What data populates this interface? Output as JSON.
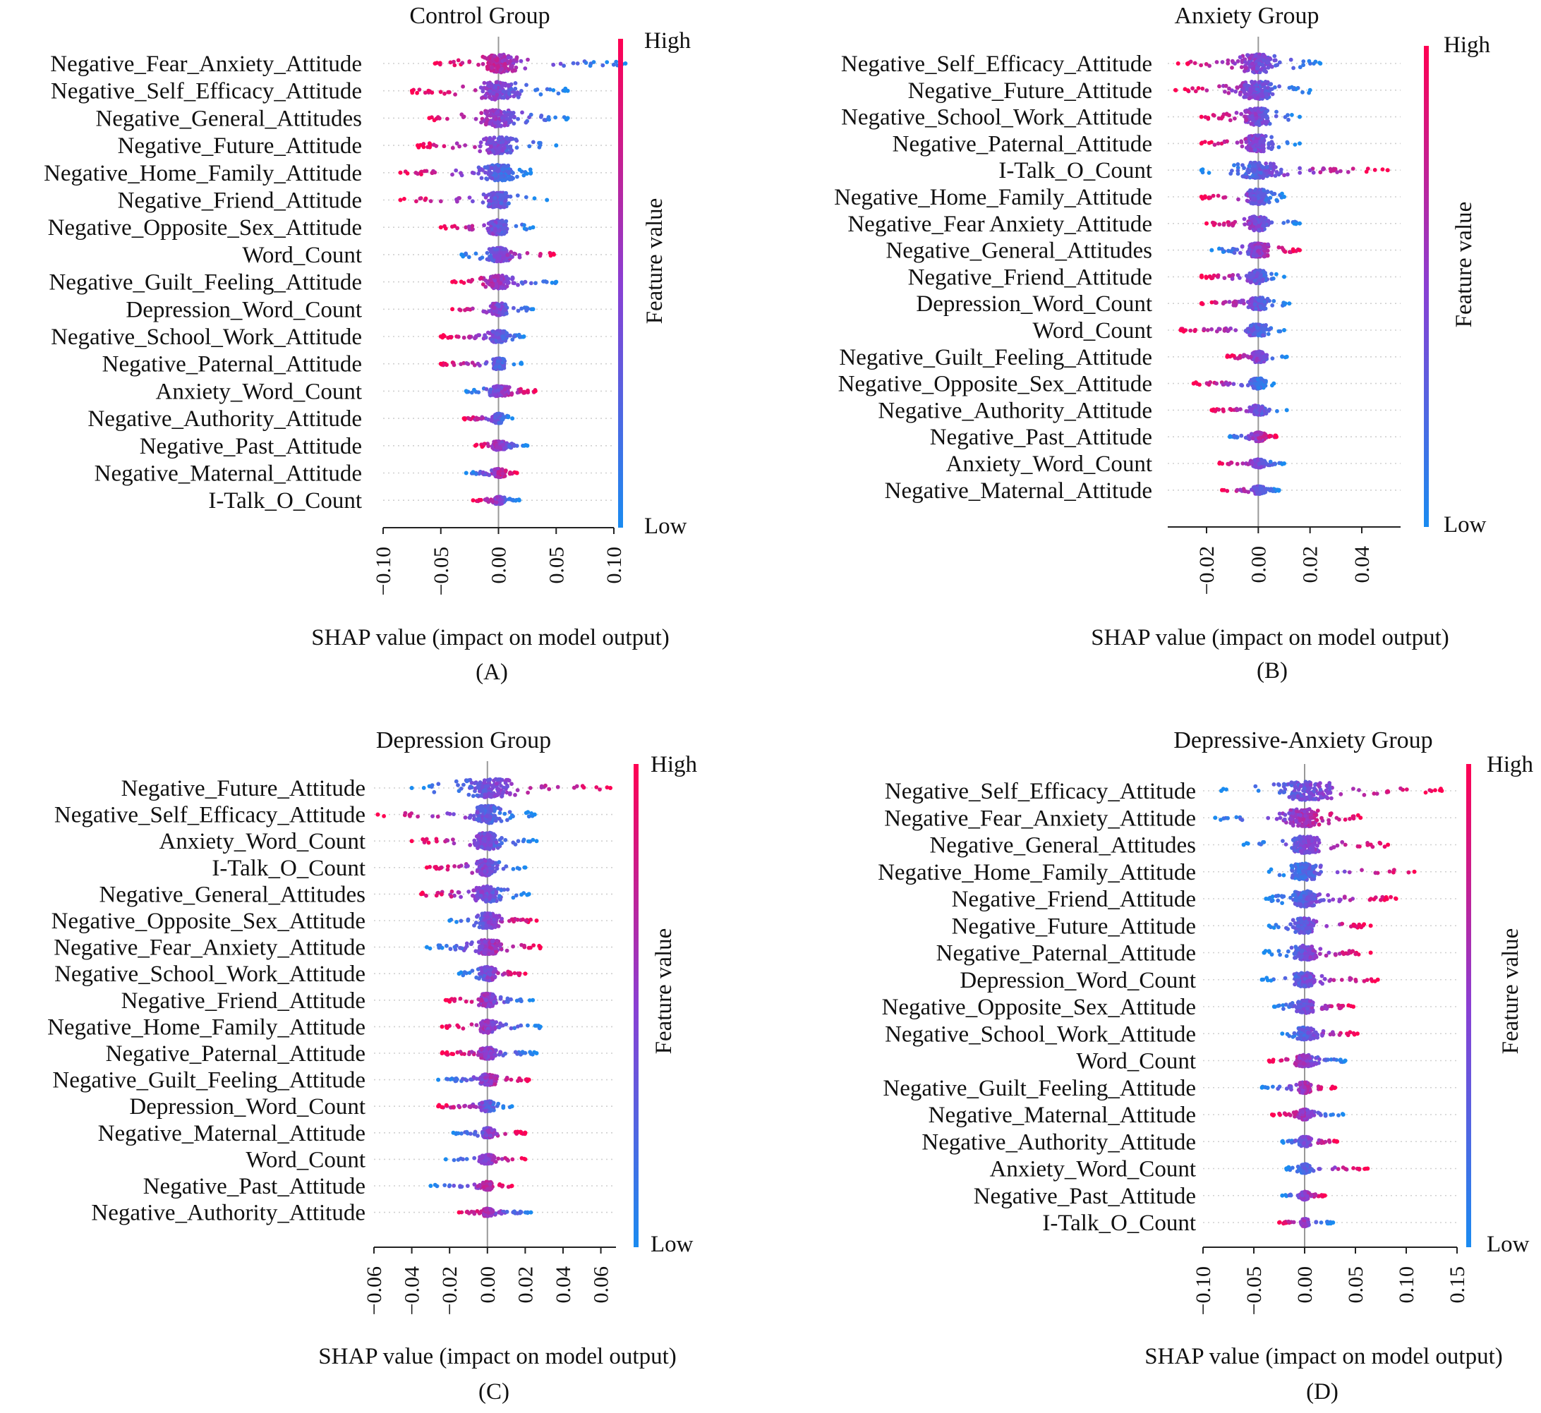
{
  "colorbar": {
    "high_label": "High",
    "low_label": "Low",
    "title": "Feature value",
    "high_color": "#ff0052",
    "mid_color": "#8a3fd3",
    "low_color": "#1a8bf0"
  },
  "xaxis_title": "SHAP value (impact on model output)",
  "chart_data": [
    {
      "type": "scatter",
      "title": "Control Group",
      "caption": "(A)",
      "xlabel": "SHAP value (impact on model output)",
      "xlim": [
        -0.1,
        0.1
      ],
      "xticks": [
        -0.1,
        -0.05,
        0.0,
        0.05,
        0.1
      ],
      "xtick_labels": [
        "−0.10",
        "−0.05",
        "0.00",
        "0.05",
        "0.10"
      ],
      "features": [
        {
          "name": "Negative_Fear_Anxiety_Attitude",
          "min": -0.055,
          "max": 0.11,
          "neg_color": "high",
          "bulk_neg": -0.012,
          "bulk_pos": 0.02
        },
        {
          "name": "Negative_Self_Efficacy_Attitude",
          "min": -0.075,
          "max": 0.06,
          "neg_color": "high",
          "bulk_neg": -0.025,
          "bulk_pos": 0.025
        },
        {
          "name": "Negative_General_Attitudes",
          "min": -0.06,
          "max": 0.06,
          "neg_color": "high",
          "bulk_neg": -0.022,
          "bulk_pos": 0.022
        },
        {
          "name": "Negative_Future_Attitude",
          "min": -0.07,
          "max": 0.05,
          "neg_color": "high",
          "bulk_neg": -0.02,
          "bulk_pos": 0.02
        },
        {
          "name": "Negative_Home_Family_Attitude",
          "min": -0.085,
          "max": 0.028,
          "neg_color": "high",
          "bulk_neg": -0.018,
          "bulk_pos": 0.018
        },
        {
          "name": "Negative_Friend_Attitude",
          "min": -0.085,
          "max": 0.042,
          "neg_color": "high",
          "bulk_neg": -0.015,
          "bulk_pos": 0.012
        },
        {
          "name": "Negative_Opposite_Sex_Attitude",
          "min": -0.05,
          "max": 0.03,
          "neg_color": "high",
          "bulk_neg": -0.012,
          "bulk_pos": 0.012
        },
        {
          "name": "Word_Count",
          "min": -0.032,
          "max": 0.048,
          "neg_color": "low",
          "bulk_neg": -0.01,
          "bulk_pos": 0.015
        },
        {
          "name": "Negative_Guilt_Feeling_Attitude",
          "min": -0.04,
          "max": 0.05,
          "neg_color": "high",
          "bulk_neg": -0.012,
          "bulk_pos": 0.015
        },
        {
          "name": "Depression_Word_Count",
          "min": -0.04,
          "max": 0.03,
          "neg_color": "high",
          "bulk_neg": -0.01,
          "bulk_pos": 0.01
        },
        {
          "name": "Negative_School_Work_Attitude",
          "min": -0.05,
          "max": 0.022,
          "neg_color": "high",
          "bulk_neg": -0.01,
          "bulk_pos": 0.008
        },
        {
          "name": "Negative_Paternal_Attitude",
          "min": -0.05,
          "max": 0.02,
          "neg_color": "high",
          "bulk_neg": -0.008,
          "bulk_pos": 0.008
        },
        {
          "name": "Anxiety_Word_Count",
          "min": -0.028,
          "max": 0.032,
          "neg_color": "low",
          "bulk_neg": -0.008,
          "bulk_pos": 0.012
        },
        {
          "name": "Negative_Authority_Attitude",
          "min": -0.03,
          "max": 0.012,
          "neg_color": "high",
          "bulk_neg": -0.006,
          "bulk_pos": 0.006
        },
        {
          "name": "Negative_Past_Attitude",
          "min": -0.02,
          "max": 0.025,
          "neg_color": "high",
          "bulk_neg": -0.006,
          "bulk_pos": 0.008
        },
        {
          "name": "Negative_Maternal_Attitude",
          "min": -0.028,
          "max": 0.016,
          "neg_color": "low",
          "bulk_neg": -0.006,
          "bulk_pos": 0.007
        },
        {
          "name": "I-Talk_O_Count",
          "min": -0.022,
          "max": 0.018,
          "neg_color": "high",
          "bulk_neg": -0.005,
          "bulk_pos": 0.006
        }
      ]
    },
    {
      "type": "scatter",
      "title": "Anxiety Group",
      "caption": "(B)",
      "xlabel": "SHAP value (impact on model output)",
      "xlim": [
        -0.035,
        0.055
      ],
      "xticks": [
        -0.02,
        0.0,
        0.02,
        0.04
      ],
      "xtick_labels": [
        "−0.02",
        "0.00",
        "0.02",
        "0.04"
      ],
      "features": [
        {
          "name": "Negative_Self_Efficacy_Attitude",
          "min": -0.031,
          "max": 0.024,
          "neg_color": "high",
          "bulk_neg": -0.01,
          "bulk_pos": 0.008
        },
        {
          "name": "Negative_Future_Attitude",
          "min": -0.032,
          "max": 0.02,
          "neg_color": "high",
          "bulk_neg": -0.01,
          "bulk_pos": 0.007
        },
        {
          "name": "Negative_School_Work_Attitude",
          "min": -0.022,
          "max": 0.016,
          "neg_color": "high",
          "bulk_neg": -0.007,
          "bulk_pos": 0.006
        },
        {
          "name": "Negative_Paternal_Attitude",
          "min": -0.022,
          "max": 0.016,
          "neg_color": "high",
          "bulk_neg": -0.007,
          "bulk_pos": 0.006
        },
        {
          "name": "I-Talk_O_Count",
          "min": -0.022,
          "max": 0.05,
          "neg_color": "low",
          "bulk_neg": -0.008,
          "bulk_pos": 0.012
        },
        {
          "name": "Negative_Home_Family_Attitude",
          "min": -0.022,
          "max": 0.01,
          "neg_color": "high",
          "bulk_neg": -0.006,
          "bulk_pos": 0.004
        },
        {
          "name": "Negative_Fear Anxiety_Attitude",
          "min": -0.02,
          "max": 0.016,
          "neg_color": "high",
          "bulk_neg": -0.006,
          "bulk_pos": 0.006
        },
        {
          "name": "Negative_General_Attitudes",
          "min": -0.018,
          "max": 0.016,
          "neg_color": "low",
          "bulk_neg": -0.005,
          "bulk_pos": 0.006
        },
        {
          "name": "Negative_Friend_Attitude",
          "min": -0.022,
          "max": 0.01,
          "neg_color": "high",
          "bulk_neg": -0.005,
          "bulk_pos": 0.004
        },
        {
          "name": "Depression_Word_Count",
          "min": -0.022,
          "max": 0.012,
          "neg_color": "high",
          "bulk_neg": -0.005,
          "bulk_pos": 0.005
        },
        {
          "name": "Word_Count",
          "min": -0.03,
          "max": 0.01,
          "neg_color": "high",
          "bulk_neg": -0.006,
          "bulk_pos": 0.004
        },
        {
          "name": "Negative_Guilt_Feeling_Attitude",
          "min": -0.012,
          "max": 0.011,
          "neg_color": "high",
          "bulk_neg": -0.003,
          "bulk_pos": 0.004
        },
        {
          "name": "Negative_Opposite_Sex_Attitude",
          "min": -0.025,
          "max": 0.006,
          "neg_color": "high",
          "bulk_neg": -0.004,
          "bulk_pos": 0.003
        },
        {
          "name": "Negative_Authority_Attitude",
          "min": -0.018,
          "max": 0.011,
          "neg_color": "high",
          "bulk_neg": -0.004,
          "bulk_pos": 0.003
        },
        {
          "name": "Negative_Past_Attitude",
          "min": -0.011,
          "max": 0.007,
          "neg_color": "low",
          "bulk_neg": -0.003,
          "bulk_pos": 0.003
        },
        {
          "name": "Anxiety_Word_Count",
          "min": -0.015,
          "max": 0.01,
          "neg_color": "high",
          "bulk_neg": -0.003,
          "bulk_pos": 0.003
        },
        {
          "name": "Negative_Maternal_Attitude",
          "min": -0.014,
          "max": 0.008,
          "neg_color": "high",
          "bulk_neg": -0.003,
          "bulk_pos": 0.003
        }
      ]
    },
    {
      "type": "scatter",
      "title": "Depression Group",
      "caption": "(C)",
      "xlabel": "SHAP value (impact on model output)",
      "xlim": [
        -0.06,
        0.068
      ],
      "xticks": [
        -0.06,
        -0.04,
        -0.02,
        0.0,
        0.02,
        0.04,
        0.06
      ],
      "xtick_labels": [
        "−0.06",
        "−0.04",
        "−0.02",
        "0.00",
        "0.02",
        "0.04",
        "0.06"
      ],
      "features": [
        {
          "name": "Negative_Future_Attitude",
          "min": -0.04,
          "max": 0.065,
          "neg_color": "low",
          "bulk_neg": -0.012,
          "bulk_pos": 0.02
        },
        {
          "name": "Negative_Self_Efficacy_Attitude",
          "min": -0.058,
          "max": 0.025,
          "neg_color": "high",
          "bulk_neg": -0.01,
          "bulk_pos": 0.008
        },
        {
          "name": "Anxiety_Word_Count",
          "min": -0.04,
          "max": 0.026,
          "neg_color": "high",
          "bulk_neg": -0.01,
          "bulk_pos": 0.008
        },
        {
          "name": "I-Talk_O_Count",
          "min": -0.032,
          "max": 0.02,
          "neg_color": "high",
          "bulk_neg": -0.008,
          "bulk_pos": 0.006
        },
        {
          "name": "Negative_General_Attitudes",
          "min": -0.035,
          "max": 0.022,
          "neg_color": "high",
          "bulk_neg": -0.01,
          "bulk_pos": 0.008
        },
        {
          "name": "Negative_Opposite_Sex_Attitude",
          "min": -0.02,
          "max": 0.026,
          "neg_color": "low",
          "bulk_neg": -0.005,
          "bulk_pos": 0.008
        },
        {
          "name": "Negative_Fear_Anxiety_Attitude",
          "min": -0.032,
          "max": 0.028,
          "neg_color": "low",
          "bulk_neg": -0.006,
          "bulk_pos": 0.01
        },
        {
          "name": "Negative_School_Work_Attitude",
          "min": -0.015,
          "max": 0.02,
          "neg_color": "low",
          "bulk_neg": -0.004,
          "bulk_pos": 0.006
        },
        {
          "name": "Negative_Friend_Attitude",
          "min": -0.022,
          "max": 0.024,
          "neg_color": "high",
          "bulk_neg": -0.005,
          "bulk_pos": 0.006
        },
        {
          "name": "Negative_Home_Family_Attitude",
          "min": -0.024,
          "max": 0.028,
          "neg_color": "high",
          "bulk_neg": -0.005,
          "bulk_pos": 0.006
        },
        {
          "name": "Negative_Paternal_Attitude",
          "min": -0.024,
          "max": 0.026,
          "neg_color": "high",
          "bulk_neg": -0.005,
          "bulk_pos": 0.006
        },
        {
          "name": "Negative_Guilt_Feeling_Attitude",
          "min": -0.026,
          "max": 0.022,
          "neg_color": "low",
          "bulk_neg": -0.005,
          "bulk_pos": 0.006
        },
        {
          "name": "Depression_Word_Count",
          "min": -0.026,
          "max": 0.013,
          "neg_color": "high",
          "bulk_neg": -0.005,
          "bulk_pos": 0.004
        },
        {
          "name": "Negative_Maternal_Attitude",
          "min": -0.018,
          "max": 0.02,
          "neg_color": "low",
          "bulk_neg": -0.004,
          "bulk_pos": 0.005
        },
        {
          "name": "Word_Count",
          "min": -0.022,
          "max": 0.02,
          "neg_color": "low",
          "bulk_neg": -0.004,
          "bulk_pos": 0.005
        },
        {
          "name": "Negative_Past_Attitude",
          "min": -0.03,
          "max": 0.013,
          "neg_color": "low",
          "bulk_neg": -0.004,
          "bulk_pos": 0.004
        },
        {
          "name": "Negative_Authority_Attitude",
          "min": -0.015,
          "max": 0.023,
          "neg_color": "high",
          "bulk_neg": -0.003,
          "bulk_pos": 0.004
        }
      ]
    },
    {
      "type": "scatter",
      "title": "Depressive-Anxiety Group",
      "caption": "(D)",
      "xlabel": "SHAP value (impact on model output)",
      "xlim": [
        -0.1,
        0.15
      ],
      "xticks": [
        -0.1,
        -0.05,
        0.0,
        0.05,
        0.1,
        0.15
      ],
      "xtick_labels": [
        "−0.10",
        "−0.05",
        "0.00",
        "0.05",
        "0.10",
        "0.15"
      ],
      "features": [
        {
          "name": "Negative_Self_Efficacy_Attitude",
          "min": -0.082,
          "max": 0.135,
          "neg_color": "low",
          "bulk_neg": -0.035,
          "bulk_pos": 0.04
        },
        {
          "name": "Negative_Fear_Anxiety_Attitude",
          "min": -0.088,
          "max": 0.055,
          "neg_color": "low",
          "bulk_neg": -0.025,
          "bulk_pos": 0.015
        },
        {
          "name": "Negative_General_Attitudes",
          "min": -0.06,
          "max": 0.082,
          "neg_color": "low",
          "bulk_neg": -0.02,
          "bulk_pos": 0.02
        },
        {
          "name": "Negative_Home_Family_Attitude",
          "min": -0.035,
          "max": 0.108,
          "neg_color": "low",
          "bulk_neg": -0.015,
          "bulk_pos": 0.02
        },
        {
          "name": "Negative_Friend_Attitude",
          "min": -0.038,
          "max": 0.09,
          "neg_color": "low",
          "bulk_neg": -0.015,
          "bulk_pos": 0.018
        },
        {
          "name": "Negative_Future_Attitude",
          "min": -0.035,
          "max": 0.065,
          "neg_color": "low",
          "bulk_neg": -0.015,
          "bulk_pos": 0.015
        },
        {
          "name": "Negative_Paternal_Attitude",
          "min": -0.04,
          "max": 0.065,
          "neg_color": "low",
          "bulk_neg": -0.012,
          "bulk_pos": 0.015
        },
        {
          "name": "Depression_Word_Count",
          "min": -0.042,
          "max": 0.072,
          "neg_color": "low",
          "bulk_neg": -0.012,
          "bulk_pos": 0.015
        },
        {
          "name": "Negative_Opposite_Sex_Attitude",
          "min": -0.03,
          "max": 0.048,
          "neg_color": "low",
          "bulk_neg": -0.008,
          "bulk_pos": 0.012
        },
        {
          "name": "Negative_School_Work_Attitude",
          "min": -0.022,
          "max": 0.052,
          "neg_color": "low",
          "bulk_neg": -0.008,
          "bulk_pos": 0.012
        },
        {
          "name": "Word_Count",
          "min": -0.035,
          "max": 0.04,
          "neg_color": "high",
          "bulk_neg": -0.008,
          "bulk_pos": 0.012
        },
        {
          "name": "Negative_Guilt_Feeling_Attitude",
          "min": -0.042,
          "max": 0.03,
          "neg_color": "low",
          "bulk_neg": -0.008,
          "bulk_pos": 0.008
        },
        {
          "name": "Negative_Maternal_Attitude",
          "min": -0.032,
          "max": 0.038,
          "neg_color": "high",
          "bulk_neg": -0.006,
          "bulk_pos": 0.008
        },
        {
          "name": "Negative_Authority_Attitude",
          "min": -0.022,
          "max": 0.032,
          "neg_color": "low",
          "bulk_neg": -0.005,
          "bulk_pos": 0.008
        },
        {
          "name": "Anxiety_Word_Count",
          "min": -0.018,
          "max": 0.062,
          "neg_color": "low",
          "bulk_neg": -0.004,
          "bulk_pos": 0.008
        },
        {
          "name": "Negative_Past_Attitude",
          "min": -0.022,
          "max": 0.02,
          "neg_color": "low",
          "bulk_neg": -0.005,
          "bulk_pos": 0.005
        },
        {
          "name": "I-Talk_O_Count",
          "min": -0.025,
          "max": 0.028,
          "neg_color": "high",
          "bulk_neg": -0.004,
          "bulk_pos": 0.005
        }
      ]
    }
  ]
}
